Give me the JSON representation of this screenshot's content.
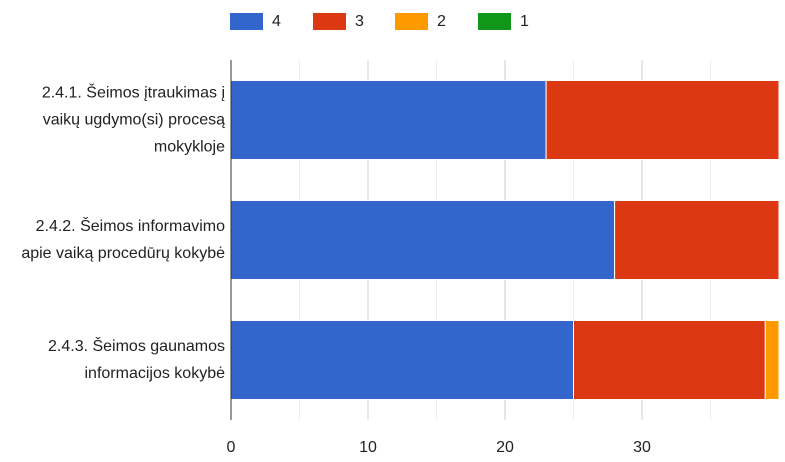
{
  "chart_data": {
    "type": "stacked_bar_horizontal",
    "categories": [
      "2.4.1. Šeimos įtraukimas į vaikų ugdymo(si) procesą mokykloje",
      "2.4.2. Šeimos informavimo apie vaiką procedūrų kokybė",
      "2.4.3. Šeimos gaunamos informacijos kokybė"
    ],
    "series": [
      {
        "name": "4",
        "color": "#3366cc",
        "values": [
          23,
          28,
          25
        ]
      },
      {
        "name": "3",
        "color": "#dc3912",
        "values": [
          17,
          12,
          14
        ]
      },
      {
        "name": "2",
        "color": "#ff9900",
        "values": [
          0,
          0,
          1
        ]
      },
      {
        "name": "1",
        "color": "#109618",
        "values": [
          0,
          0,
          0
        ]
      }
    ],
    "xlim": [
      0,
      40
    ],
    "xticks": [
      0,
      10,
      20,
      30
    ],
    "minor_xticks": [
      5,
      15,
      25,
      35
    ],
    "grid": true,
    "legend": "top"
  }
}
